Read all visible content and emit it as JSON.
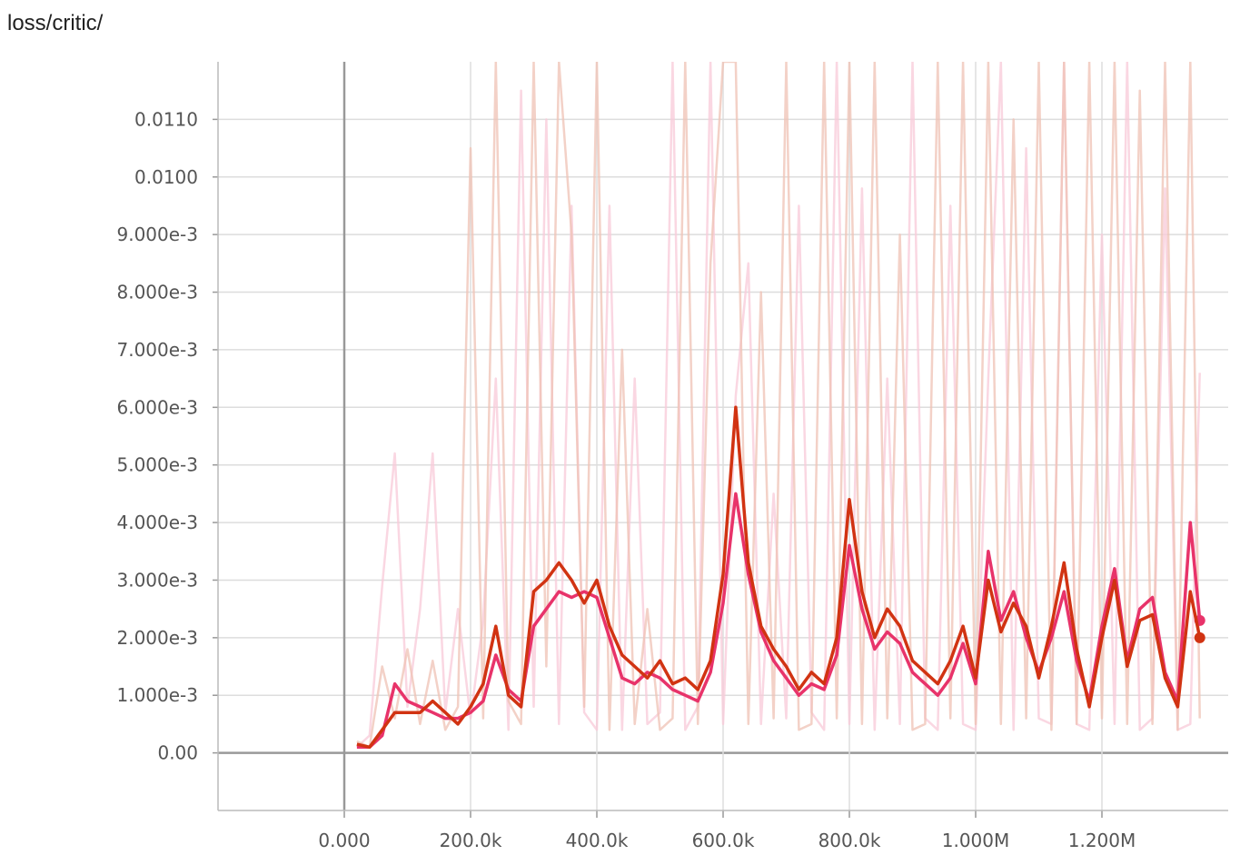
{
  "chart_data": {
    "type": "line",
    "title": "loss/critic/",
    "x": [
      20000,
      40000,
      60000,
      80000,
      100000,
      120000,
      140000,
      160000,
      180000,
      200000,
      220000,
      240000,
      260000,
      280000,
      300000,
      320000,
      340000,
      360000,
      380000,
      400000,
      420000,
      440000,
      460000,
      480000,
      500000,
      520000,
      540000,
      560000,
      580000,
      600000,
      620000,
      640000,
      660000,
      680000,
      700000,
      720000,
      740000,
      760000,
      780000,
      800000,
      820000,
      840000,
      860000,
      880000,
      900000,
      920000,
      940000,
      960000,
      980000,
      1000000,
      1020000,
      1040000,
      1060000,
      1080000,
      1100000,
      1120000,
      1140000,
      1160000,
      1180000,
      1200000,
      1220000,
      1240000,
      1260000,
      1280000,
      1300000,
      1320000,
      1340000,
      1355000
    ],
    "series": [
      {
        "color": "#f8c9d8",
        "width": 2.5,
        "opacity": 0.75,
        "values": [
          0.0001,
          0.0003,
          0.0029,
          0.0052,
          0.0008,
          0.0025,
          0.0052,
          0.0007,
          0.0025,
          0.0006,
          0.0023,
          0.0065,
          0.0004,
          0.0115,
          0.0008,
          0.011,
          0.0005,
          0.0095,
          0.0007,
          0.0004,
          0.0095,
          0.0004,
          0.0065,
          0.0005,
          0.0007,
          0.012,
          0.0004,
          0.0008,
          0.012,
          0.0005,
          0.0062,
          0.0085,
          0.0005,
          0.0045,
          0.0006,
          0.0095,
          0.0007,
          0.0004,
          0.012,
          0.0005,
          0.0098,
          0.0004,
          0.0065,
          0.0005,
          0.012,
          0.0006,
          0.0004,
          0.0095,
          0.0005,
          0.0004,
          0.0065,
          0.012,
          0.0004,
          0.0105,
          0.0006,
          0.0005,
          0.012,
          0.0005,
          0.0004,
          0.009,
          0.0005,
          0.012,
          0.0004,
          0.0006,
          0.0098,
          0.0004,
          0.0005,
          0.0066
        ]
      },
      {
        "color": "#efc2b4",
        "width": 2.5,
        "opacity": 0.75,
        "values": [
          0.0002,
          0.0001,
          0.0015,
          0.0006,
          0.0018,
          0.0005,
          0.0016,
          0.0004,
          0.0008,
          0.0105,
          0.0006,
          0.012,
          0.0009,
          0.0005,
          0.012,
          0.0015,
          0.012,
          0.009,
          0.0008,
          0.012,
          0.0004,
          0.007,
          0.0005,
          0.0025,
          0.0004,
          0.0006,
          0.012,
          0.0005,
          0.0085,
          0.012,
          0.012,
          0.0005,
          0.008,
          0.0006,
          0.012,
          0.0004,
          0.0005,
          0.012,
          0.0006,
          0.012,
          0.0005,
          0.012,
          0.0006,
          0.009,
          0.0004,
          0.0005,
          0.012,
          0.0006,
          0.012,
          0.0005,
          0.012,
          0.0005,
          0.011,
          0.0006,
          0.012,
          0.0004,
          0.012,
          0.0005,
          0.012,
          0.0006,
          0.012,
          0.0005,
          0.0115,
          0.0005,
          0.012,
          0.0004,
          0.012,
          0.0006
        ]
      },
      {
        "color": "#e8336a",
        "width": 3.5,
        "opacity": 1,
        "values": [
          0.0001,
          0.0001,
          0.0003,
          0.0012,
          0.0009,
          0.0008,
          0.0007,
          0.0006,
          0.0006,
          0.0007,
          0.0009,
          0.0017,
          0.0011,
          0.0009,
          0.0022,
          0.0025,
          0.0028,
          0.0027,
          0.0028,
          0.0027,
          0.002,
          0.0013,
          0.0012,
          0.0014,
          0.0013,
          0.0011,
          0.001,
          0.0009,
          0.0014,
          0.0026,
          0.0045,
          0.0031,
          0.0021,
          0.0016,
          0.0013,
          0.001,
          0.0012,
          0.0011,
          0.0017,
          0.0036,
          0.0025,
          0.0018,
          0.0021,
          0.0019,
          0.0014,
          0.0012,
          0.001,
          0.0013,
          0.0019,
          0.0012,
          0.0035,
          0.0023,
          0.0028,
          0.002,
          0.0014,
          0.002,
          0.0028,
          0.0016,
          0.0009,
          0.0022,
          0.0032,
          0.0016,
          0.0025,
          0.0027,
          0.0014,
          0.0009,
          0.004,
          0.0023
        ]
      },
      {
        "color": "#d13312",
        "width": 3.5,
        "opacity": 1,
        "values": [
          0.00015,
          0.0001,
          0.0004,
          0.0007,
          0.0007,
          0.0007,
          0.0009,
          0.0007,
          0.0005,
          0.0008,
          0.0012,
          0.0022,
          0.001,
          0.0008,
          0.0028,
          0.003,
          0.0033,
          0.003,
          0.0026,
          0.003,
          0.0022,
          0.0017,
          0.0015,
          0.0013,
          0.0016,
          0.0012,
          0.0013,
          0.0011,
          0.0016,
          0.0031,
          0.006,
          0.0033,
          0.0022,
          0.0018,
          0.0015,
          0.0011,
          0.0014,
          0.0012,
          0.002,
          0.0044,
          0.0028,
          0.002,
          0.0025,
          0.0022,
          0.0016,
          0.0014,
          0.0012,
          0.0016,
          0.0022,
          0.0013,
          0.003,
          0.0021,
          0.0026,
          0.0022,
          0.0013,
          0.0022,
          0.0033,
          0.0018,
          0.0008,
          0.002,
          0.003,
          0.0015,
          0.0023,
          0.0024,
          0.0013,
          0.0008,
          0.0028,
          0.002
        ]
      }
    ],
    "xlim": [
      -200000,
      1400000
    ],
    "ylim": [
      -0.001,
      0.012
    ],
    "xticks": [
      {
        "value": 0,
        "label": "0.000"
      },
      {
        "value": 200000,
        "label": "200.0k"
      },
      {
        "value": 400000,
        "label": "400.0k"
      },
      {
        "value": 600000,
        "label": "600.0k"
      },
      {
        "value": 800000,
        "label": "800.0k"
      },
      {
        "value": 1000000,
        "label": "1.000M"
      },
      {
        "value": 1200000,
        "label": "1.200M"
      }
    ],
    "yticks": [
      {
        "value": 0,
        "label": "0.00"
      },
      {
        "value": 0.001,
        "label": "1.000e-3"
      },
      {
        "value": 0.002,
        "label": "2.000e-3"
      },
      {
        "value": 0.003,
        "label": "3.000e-3"
      },
      {
        "value": 0.004,
        "label": "4.000e-3"
      },
      {
        "value": 0.005,
        "label": "5.000e-3"
      },
      {
        "value": 0.006,
        "label": "6.000e-3"
      },
      {
        "value": 0.007,
        "label": "7.000e-3"
      },
      {
        "value": 0.008,
        "label": "8.000e-3"
      },
      {
        "value": 0.009,
        "label": "9.000e-3"
      },
      {
        "value": 0.01,
        "label": "0.0100"
      },
      {
        "value": 0.011,
        "label": "0.0110"
      }
    ],
    "grid": true
  }
}
